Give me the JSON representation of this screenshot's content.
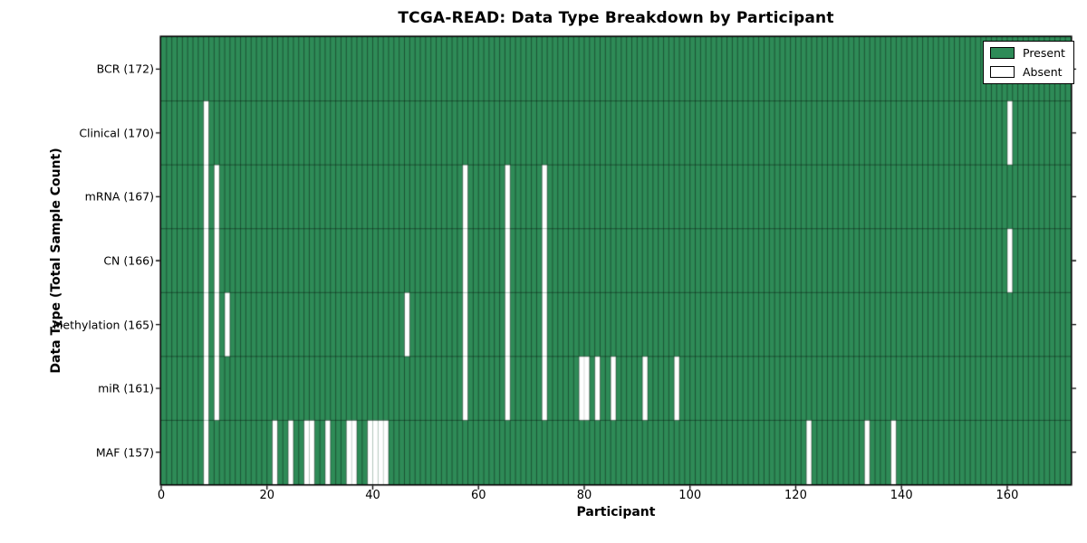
{
  "title": "TCGA-READ: Data Type Breakdown by Participant",
  "legend": {
    "present": "Present",
    "absent": "Absent"
  },
  "colors": {
    "present": "#2e8b57",
    "absent": "#ffffff",
    "edge_strong": "rgba(0,0,0,0.50)",
    "edge_faint": "rgba(0,0,0,0.16)",
    "frame": "#000000",
    "background": "#ffffff"
  },
  "chart_data": {
    "type": "heatmap",
    "title": "TCGA-READ: Data Type Breakdown by Participant",
    "xlabel": "Participant",
    "ylabel": "Data Type (Total Sample Count)",
    "legend_position": "upper right",
    "legend_entries": [
      "Present",
      "Absent"
    ],
    "n_participants": 172,
    "x_ticks": [
      0,
      20,
      40,
      60,
      80,
      100,
      120,
      140,
      160
    ],
    "x_range": [
      0,
      172
    ],
    "cell_values": {
      "present": 1,
      "absent": 0
    },
    "rows": [
      {
        "label": "BCR (172)",
        "data_type": "BCR",
        "present_count": 172,
        "absent_participants": []
      },
      {
        "label": "Clinical (170)",
        "data_type": "Clinical",
        "present_count": 170,
        "absent_participants": [
          8,
          160
        ]
      },
      {
        "label": "mRNA (167)",
        "data_type": "mRNA",
        "present_count": 167,
        "absent_participants": [
          8,
          10,
          57,
          65,
          72
        ]
      },
      {
        "label": "CN (166)",
        "data_type": "CN",
        "present_count": 166,
        "absent_participants": [
          8,
          10,
          57,
          65,
          72,
          160
        ]
      },
      {
        "label": "Methylation (165)",
        "data_type": "Methylation",
        "present_count": 165,
        "absent_participants": [
          8,
          10,
          12,
          46,
          57,
          65,
          72
        ]
      },
      {
        "label": "miR (161)",
        "data_type": "miR",
        "present_count": 161,
        "absent_participants": [
          8,
          10,
          57,
          65,
          72,
          79,
          80,
          82,
          85,
          91,
          97
        ]
      },
      {
        "label": "MAF (157)",
        "data_type": "MAF",
        "present_count": 157,
        "absent_participants": [
          8,
          21,
          24,
          27,
          28,
          31,
          35,
          36,
          39,
          40,
          41,
          42,
          122,
          133,
          138
        ]
      }
    ]
  }
}
